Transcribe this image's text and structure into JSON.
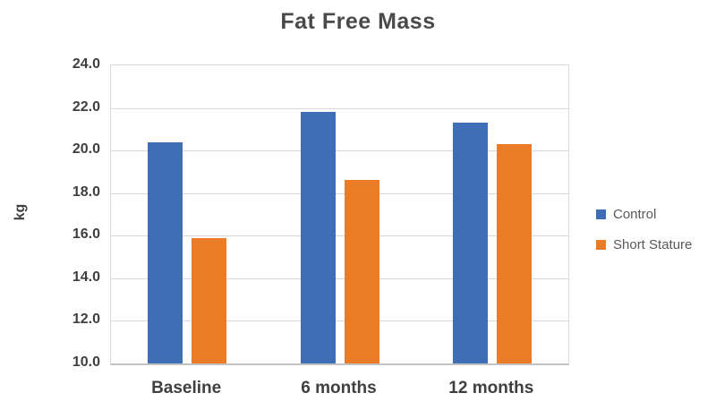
{
  "chart_data": {
    "type": "bar",
    "title": "Fat Free Mass",
    "xlabel": "",
    "ylabel": "kg",
    "categories": [
      "Baseline",
      "6 months",
      "12 months"
    ],
    "series": [
      {
        "name": "Control",
        "color": "#3e6eb5",
        "values": [
          20.4,
          21.8,
          21.3
        ]
      },
      {
        "name": "Short Stature",
        "color": "#ea7c28",
        "values": [
          15.9,
          18.6,
          20.3
        ]
      }
    ],
    "ylim": [
      10,
      24
    ],
    "ytick_step": 2,
    "ytick_labels": [
      "10.0",
      "12.0",
      "14.0",
      "16.0",
      "18.0",
      "20.0",
      "22.0",
      "24.0"
    ],
    "grid": true,
    "legend_position": "right",
    "colors": {
      "gridline": "#d9d9d9",
      "axis_line": "#c2c2c2",
      "title_text": "#4a4a4a",
      "tick_text": "#3f3f3f",
      "legend_text": "#595959"
    }
  }
}
